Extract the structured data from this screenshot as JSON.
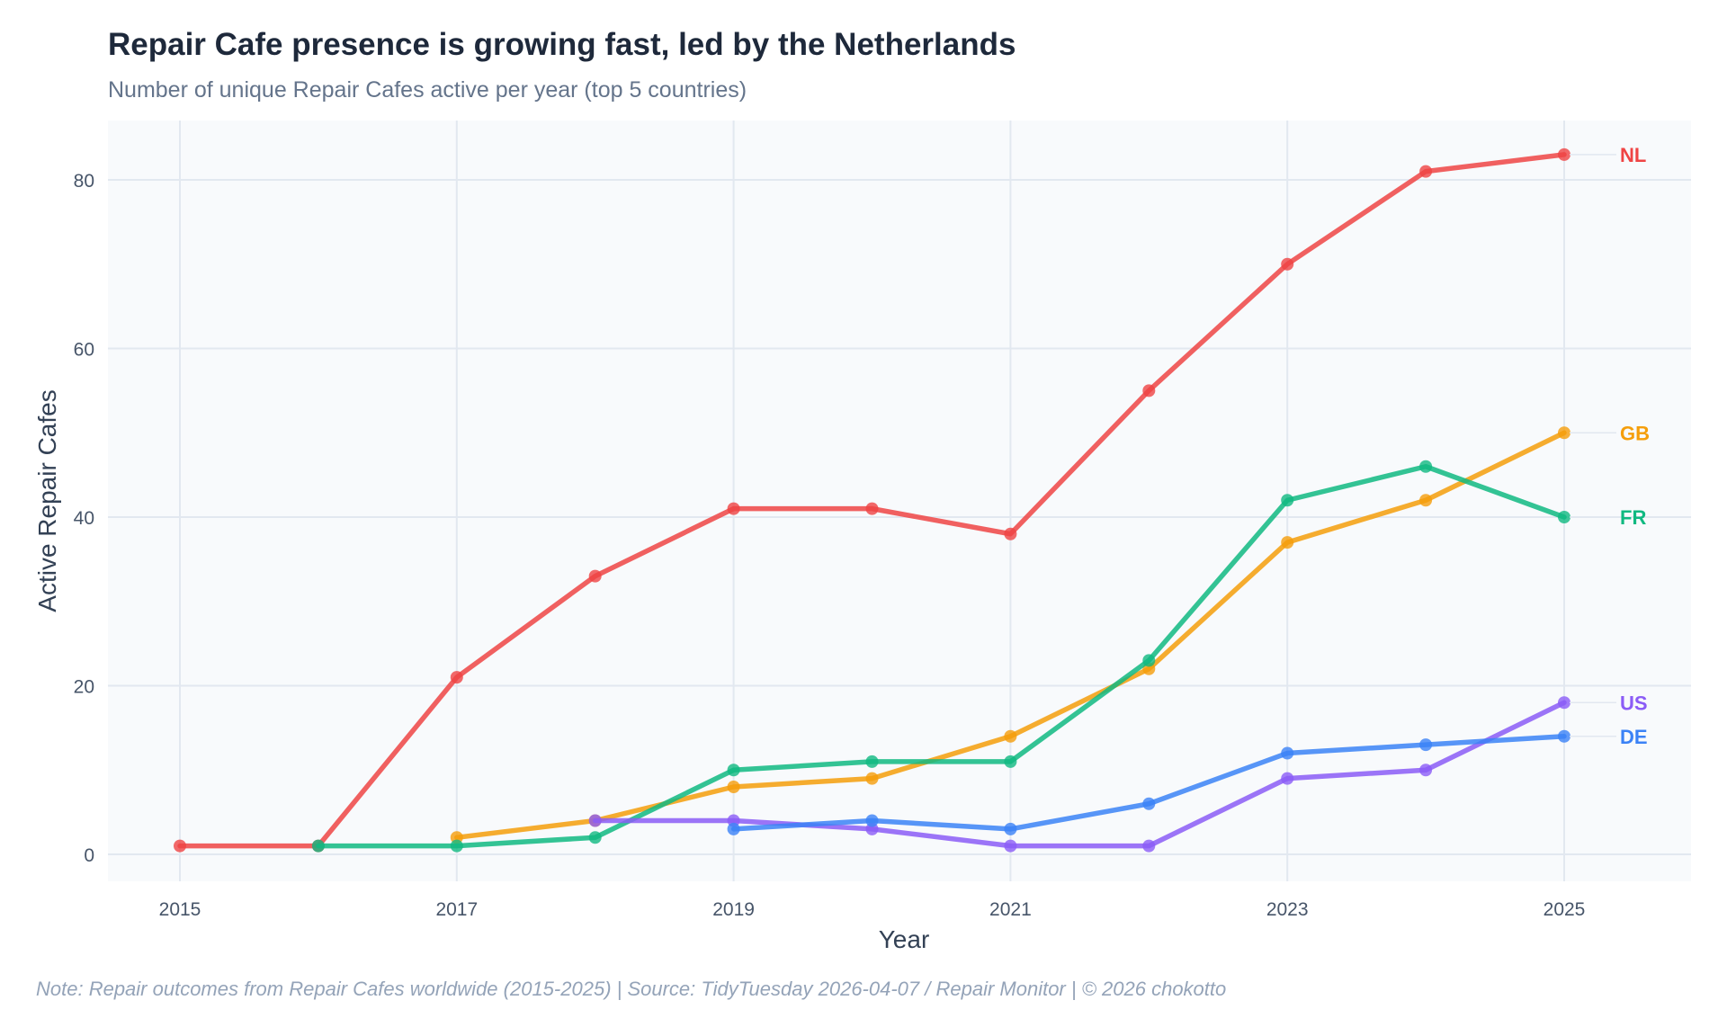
{
  "header": {
    "title": "Repair Cafe presence is growing fast, led by the Netherlands",
    "subtitle": "Number of unique Repair Cafes active per year (top 5 countries)"
  },
  "footer": {
    "note": "Note: Repair outcomes from Repair Cafes worldwide (2015-2025)  |  Source: TidyTuesday 2026-04-07 / Repair Monitor  |  © 2026 chokotto"
  },
  "chart_data": {
    "type": "line",
    "title": "Repair Cafe presence is growing fast, led by the Netherlands",
    "subtitle": "Number of unique Repair Cafes active per year (top 5 countries)",
    "xlabel": "Year",
    "ylabel": "Active Repair Cafes",
    "xlim": [
      2014.7,
      2025.9
    ],
    "ylim": [
      -3,
      87
    ],
    "x_ticks": [
      2015,
      2017,
      2019,
      2021,
      2023,
      2025
    ],
    "x_tick_labels": [
      "2015",
      "2017",
      "2019",
      "2021",
      "2023",
      "2025"
    ],
    "y_ticks": [
      0,
      20,
      40,
      60,
      80
    ],
    "y_tick_labels": [
      "0",
      "20",
      "40",
      "60",
      "80"
    ],
    "grid": true,
    "legend": "direct labels at right end of lines",
    "background": "#f8fafc",
    "gridline_color": "#e2e8f0",
    "series": [
      {
        "name": "NL",
        "color": "#ef4444",
        "x": [
          2015,
          2016,
          2017,
          2018,
          2019,
          2020,
          2021,
          2022,
          2023,
          2024,
          2025
        ],
        "values": [
          1,
          1,
          21,
          33,
          41,
          41,
          38,
          55,
          70,
          81,
          83
        ]
      },
      {
        "name": "GB",
        "color": "#f59e0b",
        "x": [
          2017,
          2018,
          2019,
          2020,
          2021,
          2022,
          2023,
          2024,
          2025
        ],
        "values": [
          2,
          4,
          8,
          9,
          14,
          22,
          37,
          42,
          50
        ]
      },
      {
        "name": "FR",
        "color": "#10b981",
        "x": [
          2016,
          2017,
          2018,
          2019,
          2020,
          2021,
          2022,
          2023,
          2024,
          2025
        ],
        "values": [
          1,
          1,
          2,
          10,
          11,
          11,
          23,
          42,
          46,
          40
        ]
      },
      {
        "name": "US",
        "color": "#8b5cf6",
        "x": [
          2018,
          2019,
          2020,
          2021,
          2022,
          2023,
          2024,
          2025
        ],
        "values": [
          4,
          4,
          3,
          1,
          1,
          9,
          10,
          18
        ]
      },
      {
        "name": "DE",
        "color": "#3b82f6",
        "x": [
          2019,
          2020,
          2021,
          2022,
          2023,
          2024,
          2025
        ],
        "values": [
          3,
          4,
          3,
          6,
          12,
          13,
          14
        ]
      }
    ]
  }
}
